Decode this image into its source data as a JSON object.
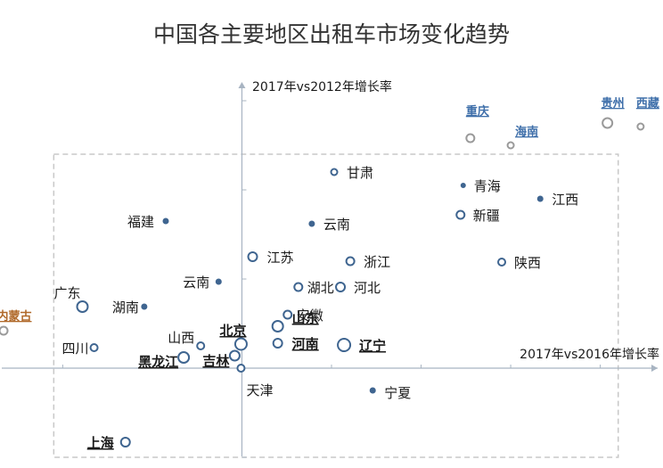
{
  "chart_data": {
    "type": "scatter",
    "title": "中国各主要地区出租车市场变化趋势",
    "xlabel": "2017年vs2016年增长率",
    "ylabel": "2017年vs2012年增长率",
    "xlim": [
      -270,
      470
    ],
    "ylim": [
      -105,
      320
    ],
    "grid": false,
    "dashed_frame": {
      "x": [
        -210,
        420
      ],
      "y": [
        -100,
        240
      ]
    },
    "points": [
      {
        "label": "甘肃",
        "x": 103,
        "y": 220,
        "size": 3.5,
        "style": "normal"
      },
      {
        "label": "青海",
        "x": 247,
        "y": 205,
        "size": 2.5,
        "style": "normal"
      },
      {
        "label": "江西",
        "x": 333,
        "y": 190,
        "size": 3,
        "style": "normal"
      },
      {
        "label": "福建",
        "x": -85,
        "y": 165,
        "size": 3,
        "style": "normal"
      },
      {
        "label": "云南",
        "x": 78,
        "y": 162,
        "size": 3,
        "style": "normal"
      },
      {
        "label": "新疆",
        "x": 244,
        "y": 172,
        "size": 4.5,
        "style": "normal"
      },
      {
        "label": "江苏",
        "x": 12,
        "y": 125,
        "size": 5,
        "style": "normal"
      },
      {
        "label": "浙江",
        "x": 121,
        "y": 120,
        "size": 4.5,
        "style": "normal"
      },
      {
        "label": "陕西",
        "x": 290,
        "y": 119,
        "size": 4,
        "style": "normal"
      },
      {
        "label": "云南",
        "x": -26,
        "y": 97,
        "size": 3,
        "style": "normal"
      },
      {
        "label": "湖北",
        "x": 63,
        "y": 91,
        "size": 4.5,
        "style": "normal"
      },
      {
        "label": "河北",
        "x": 110,
        "y": 91,
        "size": 5,
        "style": "normal"
      },
      {
        "label": "广东",
        "x": -178,
        "y": 69,
        "size": 6,
        "style": "normal"
      },
      {
        "label": "湖南",
        "x": -109,
        "y": 69,
        "size": 3,
        "style": "normal"
      },
      {
        "label": "安徽",
        "x": 51,
        "y": 60,
        "size": 4.5,
        "style": "normal"
      },
      {
        "label": "北京",
        "x": -1,
        "y": 27,
        "size": 6.5,
        "style": "bold-underline"
      },
      {
        "label": "山东",
        "x": 40,
        "y": 47,
        "size": 6,
        "style": "bold-underline"
      },
      {
        "label": "河南",
        "x": 40,
        "y": 28,
        "size": 5,
        "style": "bold-underline"
      },
      {
        "label": "辽宁",
        "x": 114,
        "y": 26,
        "size": 7,
        "style": "bold-underline"
      },
      {
        "label": "山西",
        "x": -46,
        "y": 25,
        "size": 4,
        "style": "normal"
      },
      {
        "label": "四川",
        "x": -165,
        "y": 23,
        "size": 4,
        "style": "normal"
      },
      {
        "label": "吉林",
        "x": -8,
        "y": 14,
        "size": 5.5,
        "style": "bold-underline"
      },
      {
        "label": "黑龙江",
        "x": -65,
        "y": 12,
        "size": 6,
        "style": "bold-underline"
      },
      {
        "label": "天津",
        "x": -1,
        "y": 0,
        "size": 4,
        "style": "normal"
      },
      {
        "label": "宁夏",
        "x": 146,
        "y": -25,
        "size": 3,
        "style": "normal"
      },
      {
        "label": "上海",
        "x": -130,
        "y": -83,
        "size": 5,
        "style": "bold-underline"
      },
      {
        "label": "内蒙古",
        "x": -266,
        "y": 42,
        "size": 4.5,
        "style": "outlier-orange"
      },
      {
        "label": "重庆",
        "x": 255,
        "y": 258,
        "size": 4.5,
        "style": "outlier-blue"
      },
      {
        "label": "海南",
        "x": 300,
        "y": 250,
        "size": 3.5,
        "style": "outlier-blue"
      },
      {
        "label": "贵州",
        "x": 408,
        "y": 275,
        "size": 5.5,
        "style": "outlier-blue"
      },
      {
        "label": "西藏",
        "x": 445,
        "y": 271,
        "size": 3.5,
        "style": "outlier-blue"
      }
    ],
    "colors": {
      "point": "#3f6590",
      "outlier_point": "#9a9a9a",
      "outlier_blue_label": "#3f6faa",
      "outlier_orange_label": "#b0692a",
      "axis": "#a8b4c2",
      "frame": "#c8c8c8",
      "text": "#1a1a1a"
    }
  }
}
